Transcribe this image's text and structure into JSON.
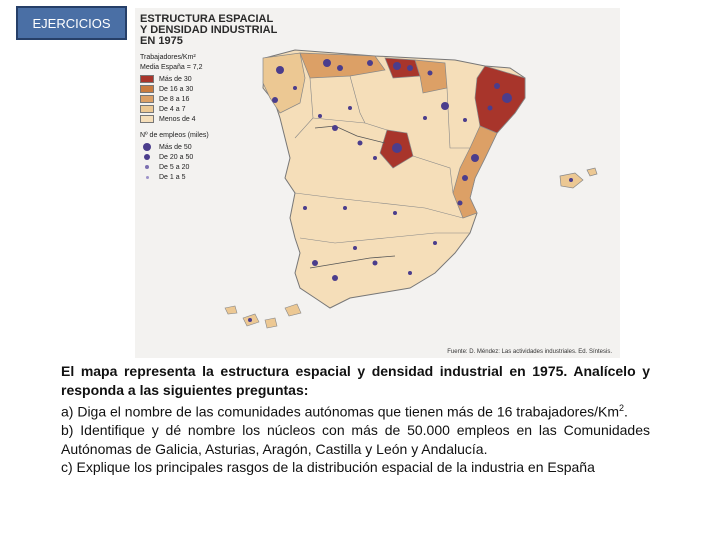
{
  "badge": "EJERCICIOS",
  "map": {
    "title_lines": [
      "ESTRUCTURA ESPACIAL",
      "Y DENSIDAD INDUSTRIAL",
      "EN 1975"
    ],
    "legend_density_title": "Trabajadores/Km²",
    "legend_density_sub": "Media España = 7,2",
    "density_classes": [
      {
        "label": "Más de 30",
        "color": "#a8352b"
      },
      {
        "label": "De 16 a 30",
        "color": "#c97b3f"
      },
      {
        "label": "De 8 a 16",
        "color": "#dca066"
      },
      {
        "label": "De 4 a 7",
        "color": "#ecc893"
      },
      {
        "label": "Menos de 4",
        "color": "#f5deb9"
      }
    ],
    "legend_employment_title": "Nº de empleos (miles)",
    "employment_classes": [
      "Más de 50",
      "De 20 a 50",
      "De 5 a 20",
      "De 1 a 5"
    ],
    "source": "Fuente: D. Méndez: Las actividades industriales. Ed. Síntesis."
  },
  "text": {
    "intro": "El mapa representa la estructura espacial y densidad industrial en 1975. Analícelo y responda a las siguientes preguntas:",
    "a_main": "a) Diga el nombre de las comunidades autónomas que tienen más de 16 trabajadores/Km",
    "a_sup": "2",
    "a_end": ".",
    "b": "b) Identifique y dé nombre los núcleos con más de 50.000 empleos en las Comunidades Autónomas de Galicia, Asturias, Aragón, Castilla y León y Andalucía.",
    "c": "c) Explique los principales rasgos de la distribución espacial de la industria en España"
  }
}
